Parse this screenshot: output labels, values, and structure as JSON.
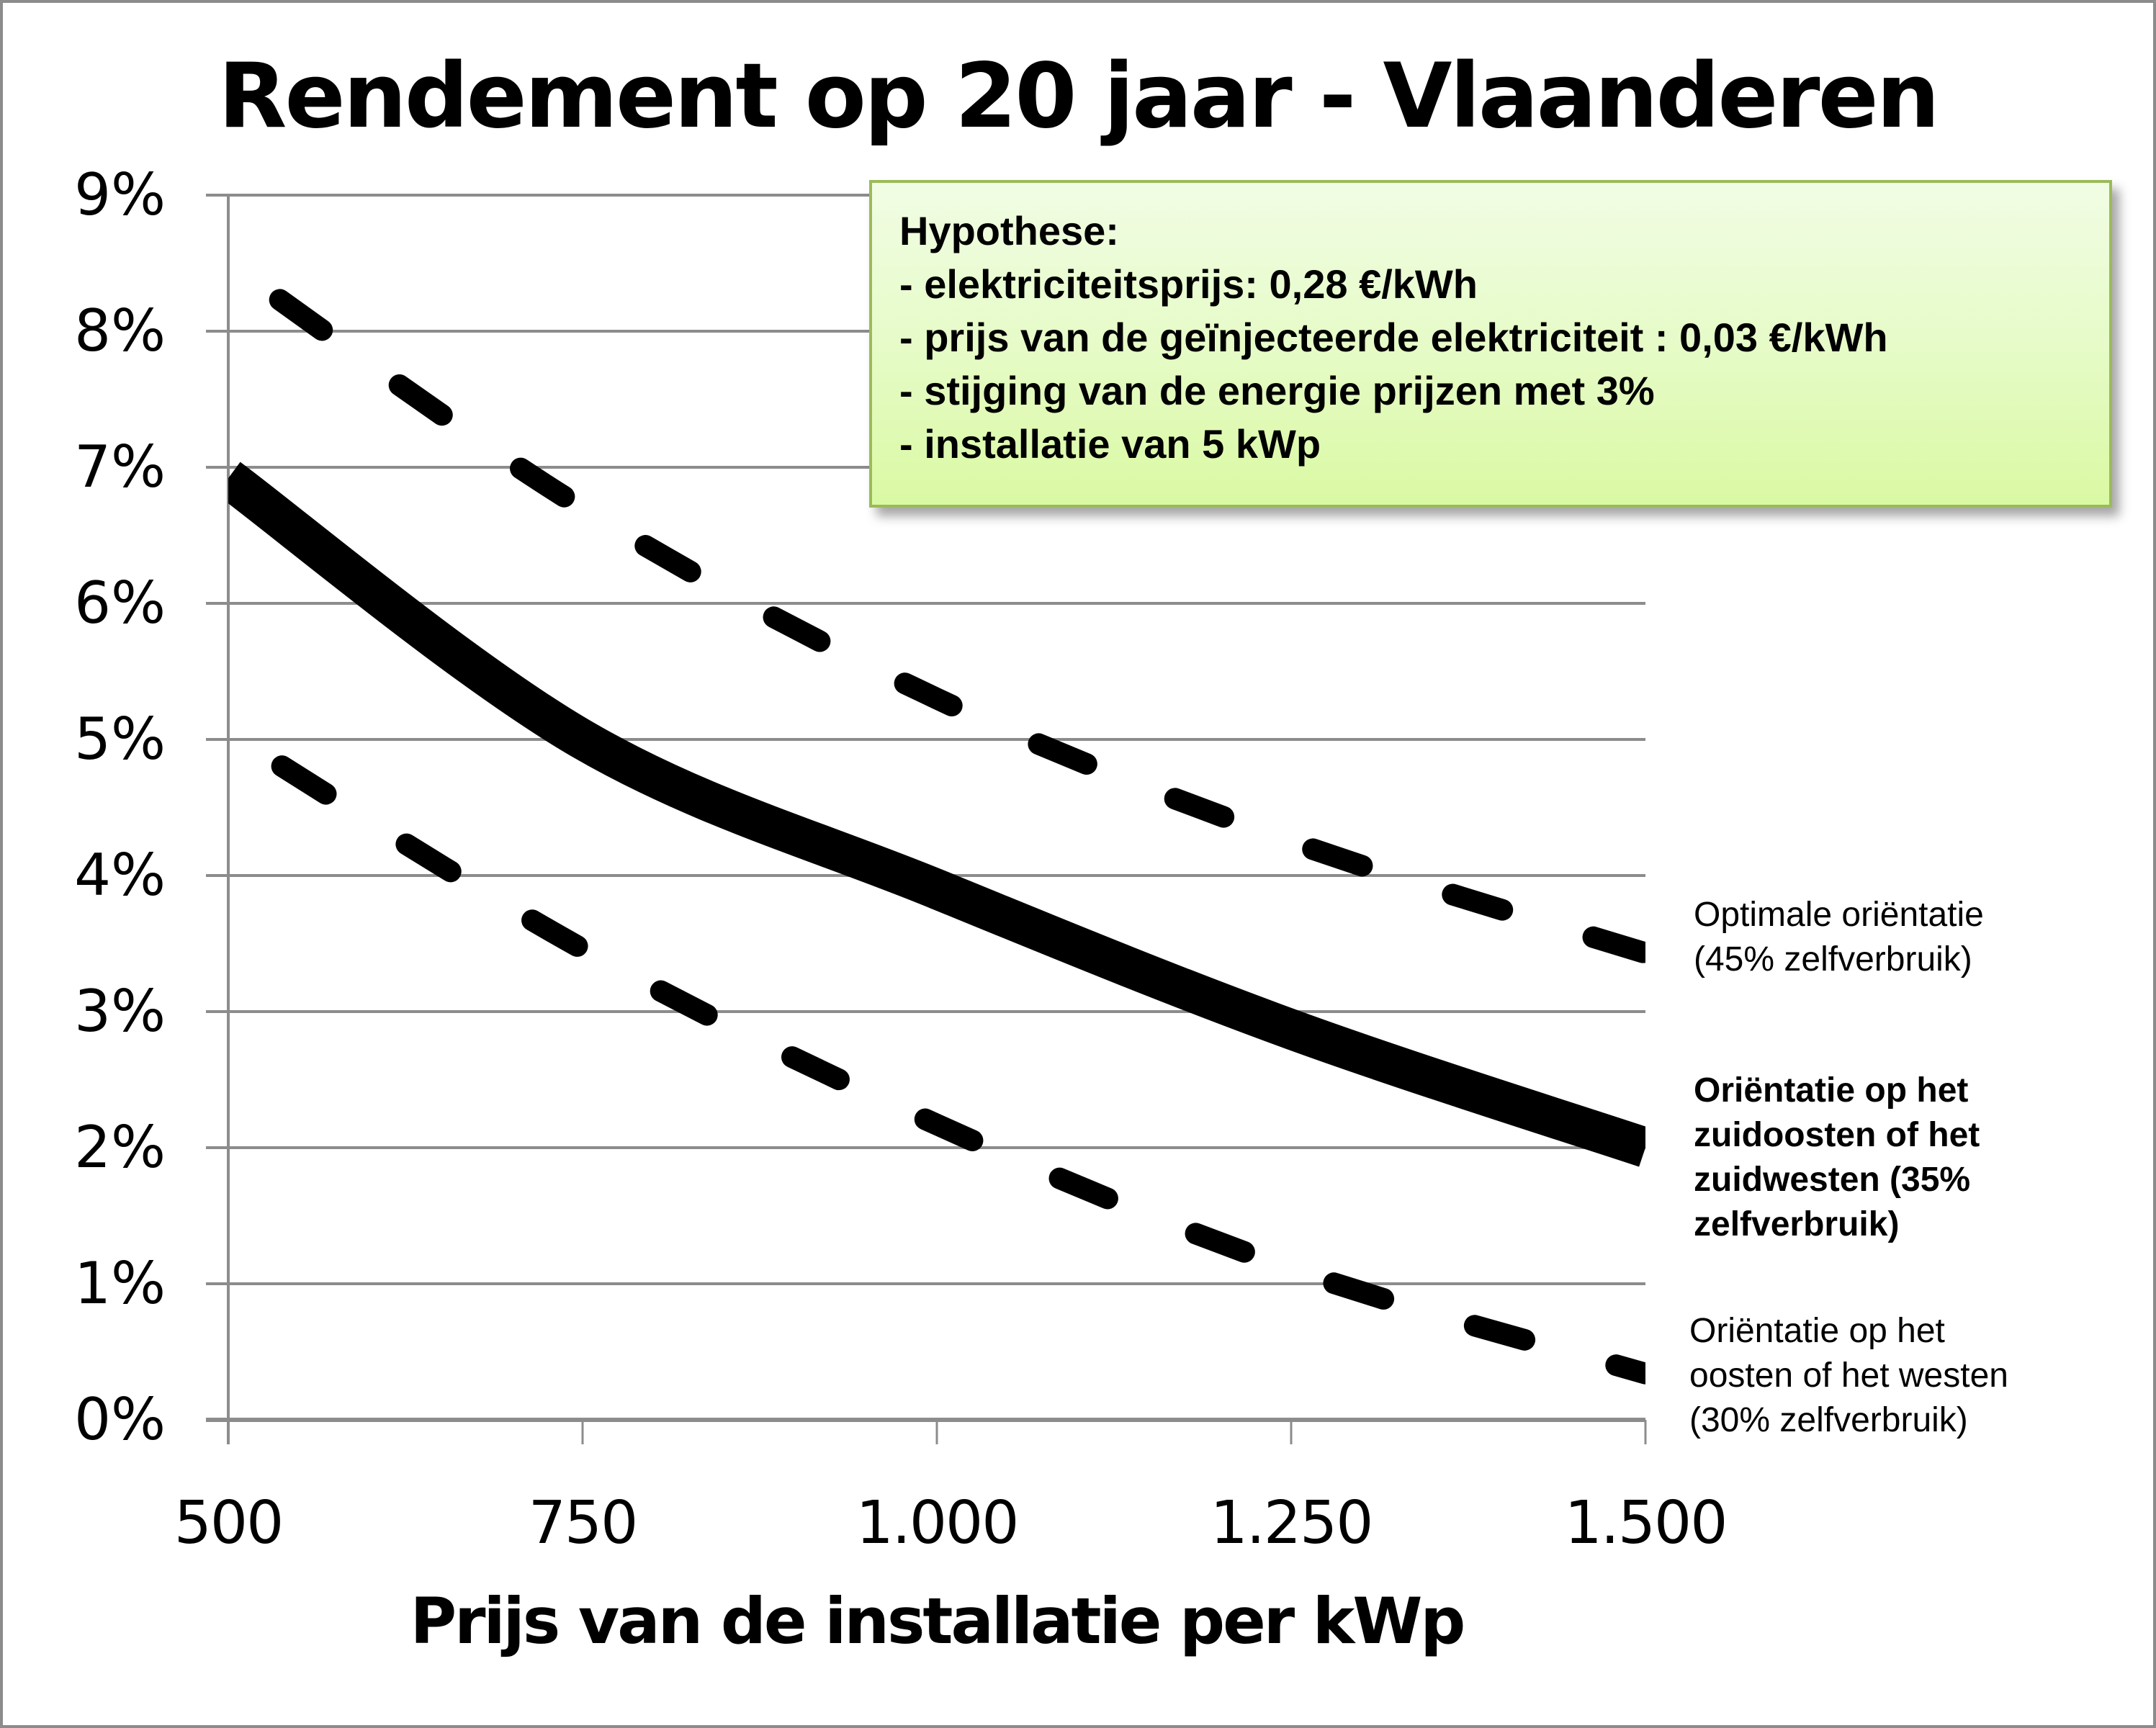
{
  "title": "Rendement op 20 jaar - Vlaanderen",
  "y_ticks": [
    "9%",
    "8%",
    "7%",
    "6%",
    "5%",
    "4%",
    "3%",
    "2%",
    "1%",
    "0%"
  ],
  "x_ticks": [
    "500",
    "750",
    "1.000",
    "1.250",
    "1.500"
  ],
  "x_axis_title": "Prijs van de installatie per kWp",
  "hypothesis": {
    "heading": "Hypothese:",
    "lines": [
      "- elektriciteitsprijs: 0,28 €/kWh",
      "- prijs van de geïnjecteerde elektriciteit : 0,03 €/kWh",
      "- stijging van de energie prijzen met 3%",
      "- installatie van 5 kWp"
    ]
  },
  "legend": {
    "optimal": [
      "Optimale oriëntatie",
      "(45% zelfverbruik)"
    ],
    "southeast_southwest": [
      "Oriëntatie op het",
      "zuidoosten of het",
      "zuidwesten (35%",
      "zelfverbruik)"
    ],
    "east_west": [
      "Oriëntatie op het",
      "oosten of het westen",
      "(30% zelfverbruik)"
    ]
  },
  "colors": {
    "line": "#000000",
    "grid": "#8c8c8c",
    "box_border": "#9bbb59",
    "box_fill_top": "#f1fde4",
    "box_fill_bottom": "#daf9a3"
  },
  "chart_data": {
    "type": "line",
    "title": "Rendement op 20 jaar - Vlaanderen",
    "xlabel": "Prijs van de installatie per kWp",
    "ylabel": "",
    "x": [
      500,
      750,
      1000,
      1250,
      1500
    ],
    "xlim": [
      500,
      1500
    ],
    "ylim": [
      0,
      9
    ],
    "y_unit": "%",
    "grid": true,
    "legend_position": "right (inline labels)",
    "series": [
      {
        "name": "Optimale oriëntatie (45% zelfverbruik)",
        "style": "dashed",
        "values": [
          8.5,
          6.7,
          5.3,
          4.25,
          3.43
        ]
      },
      {
        "name": "Oriëntatie op het zuidoosten of het zuidwesten (35% zelfverbruik)",
        "style": "solid-thick",
        "values": [
          6.92,
          5.0,
          3.9,
          2.87,
          2.0
        ]
      },
      {
        "name": "Oriëntatie op het oosten of het westen (30% zelfverbruik)",
        "style": "dashed",
        "values": [
          5.05,
          3.46,
          2.17,
          1.11,
          0.34
        ]
      }
    ],
    "annotation": "Hypothese: elektriciteitsprijs 0,28 €/kWh; prijs van de geïnjecteerde elektriciteit 0,03 €/kWh; stijging van de energie prijzen met 3%; installatie van 5 kWp"
  }
}
